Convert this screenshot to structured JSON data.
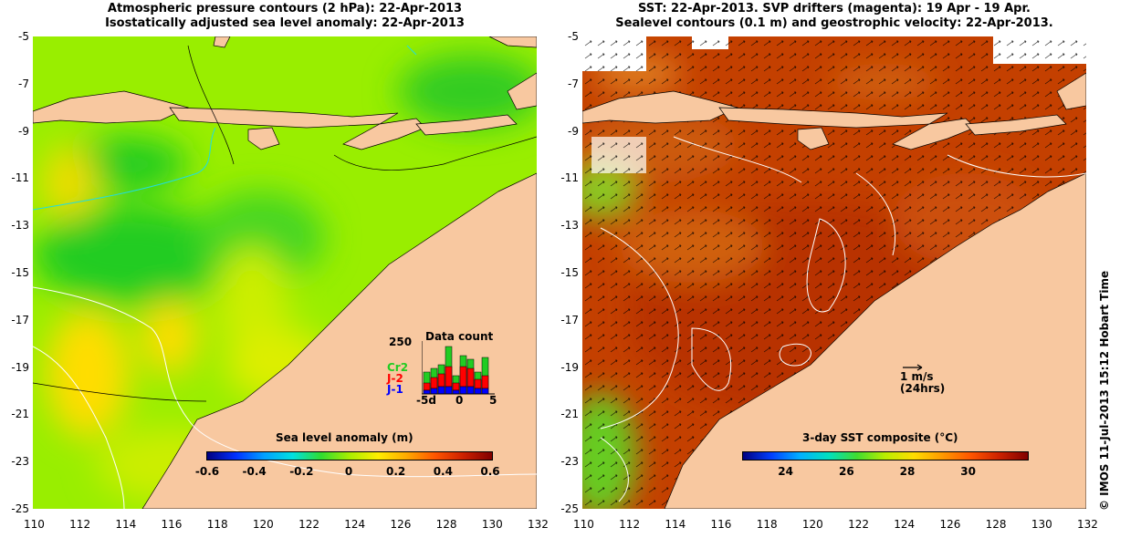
{
  "left_panel": {
    "title_line1": "Atmospheric pressure contours (2 hPa): 22-Apr-2013",
    "title_line2": "Isostatically adjusted sea level anomaly: 22-Apr-2013",
    "colorbar": {
      "label": "Sea level anomaly (m)",
      "ticks": [
        "-0.6",
        "-0.4",
        "-0.2",
        "0",
        "0.2",
        "0.4",
        "0.6"
      ],
      "range": [
        -0.6,
        0.6
      ]
    },
    "data_count": {
      "title": "Data count",
      "ymax_label": "250",
      "legend": [
        {
          "name": "Cr2",
          "color": "#22cc22"
        },
        {
          "name": "J-2",
          "color": "#ff0000"
        },
        {
          "name": "J-1",
          "color": "#0000ff"
        }
      ],
      "xticks": [
        "-5d",
        "0",
        "5"
      ]
    }
  },
  "right_panel": {
    "title_line1": "SST: 22-Apr-2013. SVP drifters (magenta): 19 Apr - 19 Apr.",
    "title_line2": "Sealevel contours (0.1 m) and geostrophic velocity: 22-Apr-2013.",
    "colorbar": {
      "label": "3-day SST composite (°C)",
      "ticks": [
        "24",
        "26",
        "28",
        "30"
      ],
      "range": [
        22.6,
        31.9
      ]
    },
    "scale_arrow": {
      "line1": "1 m/s",
      "line2": "(24hrs)"
    }
  },
  "axes": {
    "x_ticks": [
      "110",
      "112",
      "114",
      "116",
      "118",
      "120",
      "122",
      "124",
      "126",
      "128",
      "130",
      "132"
    ],
    "y_ticks": [
      "-5",
      "-7",
      "-9",
      "-11",
      "-13",
      "-15",
      "-17",
      "-19",
      "-21",
      "-23",
      "-25"
    ],
    "x_range": [
      110,
      132
    ],
    "y_range": [
      -25,
      -5
    ]
  },
  "credit": "© IMOS 11-Jul-2013 15:12 Hobart Time",
  "colors": {
    "land": "#f8c8a0",
    "sla_low": "#22cc22",
    "sla_mid": "#99ee00",
    "sla_high": "#ffcc00",
    "sst_hot": "#b83000",
    "sst_warm": "#d05010"
  }
}
